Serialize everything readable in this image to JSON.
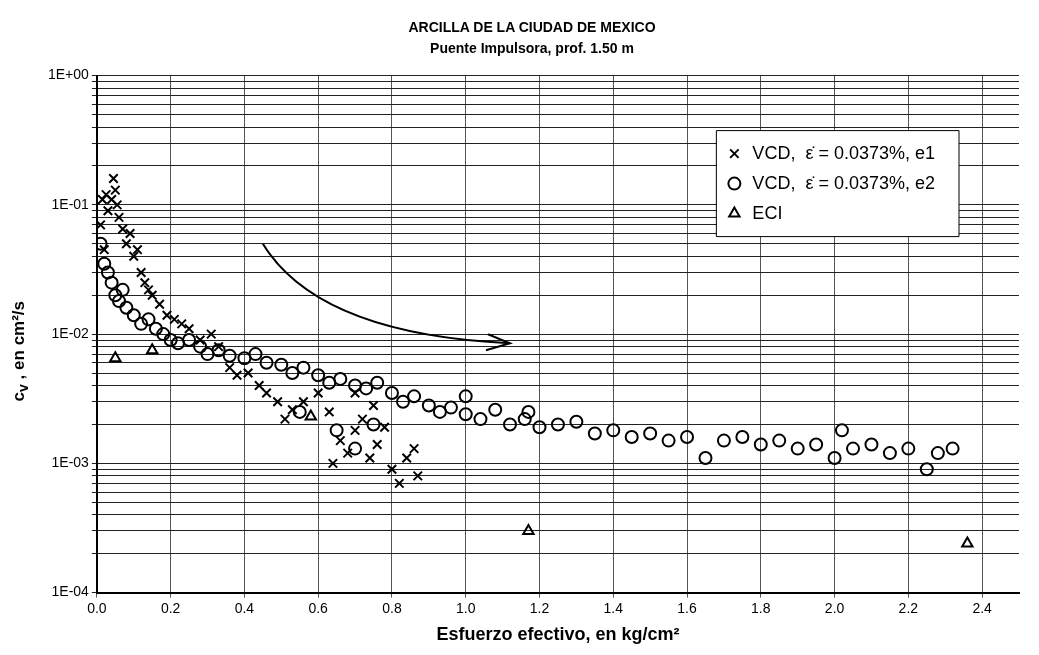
{
  "chart_data": {
    "type": "scatter",
    "title": "ARCILLA DE LA CIUDAD DE MEXICO",
    "subtitle": "Puente Impulsora, prof. 1.50 m",
    "xlabel": "Esfuerzo efectivo, en kg/cm²",
    "ylabel": "c$_{v}$ , en cm²/s",
    "log": "y",
    "grid": true,
    "legend": "top right",
    "xlim": [
      0,
      2.5
    ],
    "xticks": [
      {
        "value": 0,
        "label": "0.0"
      },
      0.2,
      0.4,
      0.6,
      0.8,
      {
        "value": 1,
        "label": "1.0"
      },
      1.2,
      1.4,
      1.6,
      1.8,
      {
        "value": 2,
        "label": "2.0"
      },
      2.2,
      2.4
    ],
    "ylim": [
      0.0001,
      1
    ],
    "yticks": [
      {
        "value": 0.0001,
        "label": "1E-04"
      },
      {
        "value": 0.0002,
        "label": null
      },
      {
        "value": 0.0003,
        "label": null
      },
      {
        "value": 0.0004,
        "label": null
      },
      {
        "value": 0.0005,
        "label": null
      },
      {
        "value": 0.0006,
        "label": null
      },
      {
        "value": 0.0007,
        "label": null
      },
      {
        "value": 0.0008,
        "label": null
      },
      {
        "value": 0.0009,
        "label": null
      },
      {
        "value": 0.001,
        "label": "1E-03"
      },
      {
        "value": 0.002,
        "label": null
      },
      {
        "value": 0.003,
        "label": null
      },
      {
        "value": 0.004,
        "label": null
      },
      {
        "value": 0.005,
        "label": null
      },
      {
        "value": 0.006,
        "label": null
      },
      {
        "value": 0.007,
        "label": null
      },
      {
        "value": 0.008,
        "label": null
      },
      {
        "value": 0.009,
        "label": null
      },
      {
        "value": 0.01,
        "label": "1E-02"
      },
      {
        "value": 0.02,
        "label": null
      },
      {
        "value": 0.03,
        "label": null
      },
      {
        "value": 0.04,
        "label": null
      },
      {
        "value": 0.05,
        "label": null
      },
      {
        "value": 0.06,
        "label": null
      },
      {
        "value": 0.07,
        "label": null
      },
      {
        "value": 0.08,
        "label": null
      },
      {
        "value": 0.09,
        "label": null
      },
      {
        "value": 0.1,
        "label": "1E-01"
      },
      {
        "value": 0.2,
        "label": null
      },
      {
        "value": 0.3,
        "label": null
      },
      {
        "value": 0.4,
        "label": null
      },
      {
        "value": 0.5,
        "label": null
      },
      {
        "value": 0.6,
        "label": null
      },
      {
        "value": 0.7,
        "label": null
      },
      {
        "value": 0.8,
        "label": null
      },
      {
        "value": 0.9,
        "label": null
      },
      {
        "value": 1,
        "label": "1E+00"
      }
    ],
    "series": [
      {
        "name": "VCD,  ε̇ = 0.0373%, e1",
        "color": "#000000",
        "marker": "cross",
        "x": [
          0.01,
          0.015,
          0.02,
          0.025,
          0.03,
          0.04,
          0.045,
          0.05,
          0.055,
          0.06,
          0.07,
          0.08,
          0.09,
          0.1,
          0.11,
          0.12,
          0.13,
          0.14,
          0.15,
          0.17,
          0.19,
          0.21,
          0.23,
          0.25,
          0.28,
          0.31,
          0.33,
          0.36,
          0.38,
          0.41,
          0.44,
          0.46,
          0.49,
          0.51,
          0.53,
          0.56,
          0.6,
          0.63,
          0.64,
          0.66,
          0.68,
          0.7,
          0.72,
          0.74,
          0.76,
          0.78,
          0.8,
          0.82,
          0.84,
          0.86,
          0.87,
          0.75,
          0.7
        ],
        "values": [
          0.07,
          0.11,
          0.045,
          0.12,
          0.09,
          0.11,
          0.16,
          0.13,
          0.1,
          0.08,
          0.065,
          0.05,
          0.06,
          0.04,
          0.045,
          0.03,
          0.025,
          0.022,
          0.02,
          0.017,
          0.014,
          0.013,
          0.012,
          0.011,
          0.009,
          0.01,
          0.008,
          0.0055,
          0.0048,
          0.005,
          0.004,
          0.0035,
          0.003,
          0.0022,
          0.0026,
          0.003,
          0.0035,
          0.0025,
          0.001,
          0.0015,
          0.0012,
          0.0018,
          0.0022,
          0.0011,
          0.0014,
          0.0019,
          0.0009,
          0.0007,
          0.0011,
          0.0013,
          0.0008,
          0.0028,
          0.0035
        ]
      },
      {
        "name": "VCD,  ε̇ = 0.0373%, e2",
        "color": "#000000",
        "marker": "circle",
        "x": [
          0.01,
          0.02,
          0.03,
          0.04,
          0.05,
          0.06,
          0.07,
          0.08,
          0.1,
          0.12,
          0.14,
          0.16,
          0.18,
          0.2,
          0.22,
          0.25,
          0.28,
          0.3,
          0.33,
          0.36,
          0.4,
          0.43,
          0.46,
          0.5,
          0.53,
          0.56,
          0.6,
          0.63,
          0.66,
          0.7,
          0.73,
          0.76,
          0.8,
          0.83,
          0.86,
          0.9,
          0.93,
          0.96,
          1.0,
          1.04,
          1.08,
          1.12,
          1.16,
          1.2,
          1.25,
          1.3,
          1.35,
          1.4,
          1.45,
          1.5,
          1.55,
          1.6,
          1.65,
          1.7,
          1.75,
          1.8,
          1.85,
          1.9,
          1.95,
          2.0,
          2.05,
          2.1,
          2.15,
          2.2,
          2.25,
          2.28,
          2.32,
          0.65,
          0.7,
          0.55,
          1.0,
          1.17,
          2.02,
          0.75
        ],
        "values": [
          0.05,
          0.035,
          0.03,
          0.025,
          0.02,
          0.018,
          0.022,
          0.016,
          0.014,
          0.012,
          0.013,
          0.011,
          0.01,
          0.009,
          0.0085,
          0.009,
          0.008,
          0.007,
          0.0075,
          0.0068,
          0.0065,
          0.007,
          0.006,
          0.0058,
          0.005,
          0.0055,
          0.0048,
          0.0042,
          0.0045,
          0.004,
          0.0038,
          0.0042,
          0.0035,
          0.003,
          0.0033,
          0.0028,
          0.0025,
          0.0027,
          0.0024,
          0.0022,
          0.0026,
          0.002,
          0.0022,
          0.0019,
          0.002,
          0.0021,
          0.0017,
          0.0018,
          0.0016,
          0.0017,
          0.0015,
          0.0016,
          0.0011,
          0.0015,
          0.0016,
          0.0014,
          0.0015,
          0.0013,
          0.0014,
          0.0011,
          0.0013,
          0.0014,
          0.0012,
          0.0013,
          0.0009,
          0.0012,
          0.0013,
          0.0018,
          0.0013,
          0.0025,
          0.0033,
          0.0025,
          0.0018,
          0.002
        ]
      },
      {
        "name": "ECI",
        "color": "#000000",
        "marker": "triangle",
        "x": [
          0.05,
          0.15,
          0.58,
          1.17,
          2.36
        ],
        "values": [
          0.0065,
          0.0075,
          0.0023,
          0.0003,
          0.00024
        ]
      }
    ]
  }
}
